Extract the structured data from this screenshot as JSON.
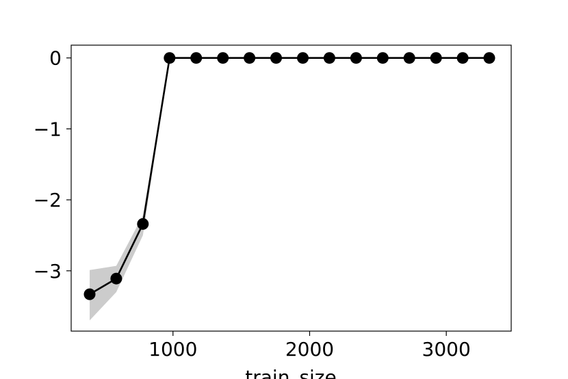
{
  "chart_data": {
    "type": "line",
    "title": "",
    "xlabel": "train_size",
    "ylabel": "",
    "xlim": [
      255,
      3475
    ],
    "ylim": [
      -3.85,
      0.18
    ],
    "xticks": [
      1000,
      2000,
      3000
    ],
    "xtick_labels": [
      "1000",
      "2000",
      "3000"
    ],
    "yticks": [
      0,
      -1,
      -2,
      -3
    ],
    "ytick_labels": [
      "0",
      "−1",
      "−2",
      "−3"
    ],
    "grid": false,
    "legend": "none",
    "series": [
      {
        "x": [
          390,
          585,
          780,
          975,
          1170,
          1365,
          1560,
          1755,
          1950,
          2145,
          2340,
          2535,
          2730,
          2925,
          3120,
          3315
        ],
        "y": [
          -3.33,
          -3.11,
          -2.34,
          0,
          0,
          0,
          0,
          0,
          0,
          0,
          0,
          0,
          0,
          0,
          0,
          0
        ],
        "y_lower": [
          -3.7,
          -3.3,
          -2.5,
          0,
          0,
          0,
          0,
          0,
          0,
          0,
          0,
          0,
          0,
          0,
          0,
          0
        ],
        "y_upper": [
          -2.99,
          -2.93,
          -2.22,
          0,
          0,
          0,
          0,
          0,
          0,
          0,
          0,
          0,
          0,
          0,
          0,
          0
        ],
        "line_color": "#000000",
        "band_color": "#cccccc",
        "marker": "circle"
      }
    ]
  }
}
